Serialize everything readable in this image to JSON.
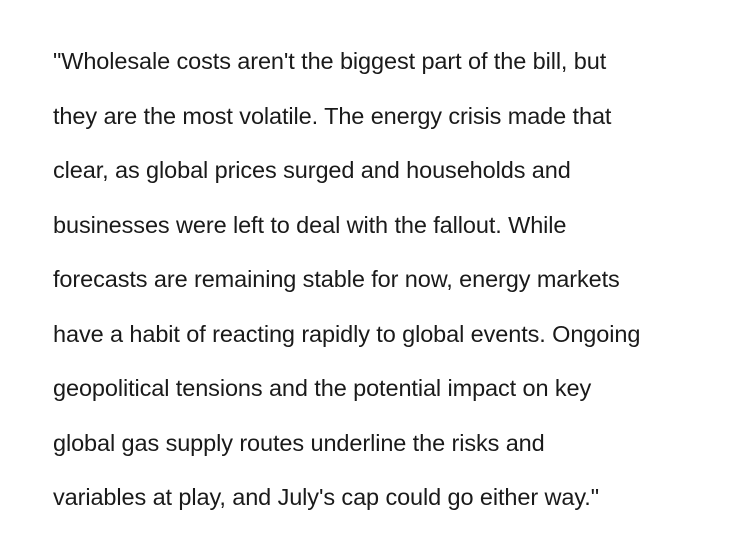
{
  "article": {
    "quote_lines": [
      "\"Wholesale costs aren't the biggest part of the bill, but",
      "they are the most volatile. The energy crisis made that",
      "clear, as global prices surged and households and",
      "businesses were left to deal with the fallout. While",
      "forecasts are remaining stable for now, energy markets",
      "have a habit of reacting rapidly to global events. Ongoing",
      "geopolitical tensions and the potential impact on key",
      "global gas supply routes underline the risks and",
      "variables at play, and July's cap could go either way.\""
    ]
  }
}
